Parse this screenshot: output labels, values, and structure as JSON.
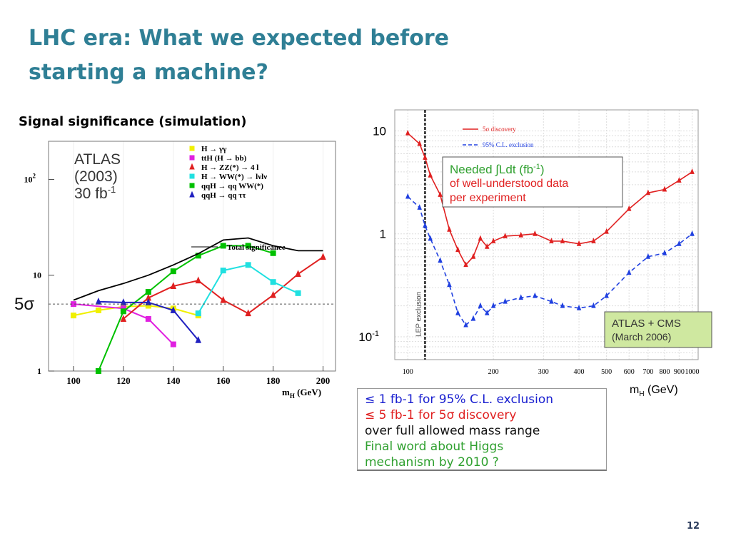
{
  "slide": {
    "title_line1": "LHC era:  What we expected before",
    "title_line2": "starting  a machine?",
    "subtitle": "Signal significance (simulation)",
    "page_number": "12"
  },
  "chart_data": [
    {
      "type": "line",
      "y_scale": "log",
      "xlabel": "m",
      "xlabel_sub": "H",
      "xlabel_unit": " (GeV)",
      "xlim": [
        90,
        205
      ],
      "ylim": [
        1,
        250
      ],
      "x_ticks": [
        "100",
        "120",
        "140",
        "160",
        "180",
        "200"
      ],
      "y_ticks": [
        {
          "value": 1,
          "label": "1",
          "sup": ""
        },
        {
          "value": 10,
          "label": "10",
          "sup": ""
        },
        {
          "value": 100,
          "label": "10",
          "sup": "2"
        }
      ],
      "threshold": {
        "value": 5,
        "label": "5σ"
      },
      "annotation": {
        "line1": "ATLAS",
        "line2": "(2003)",
        "line3": "30 fb",
        "line3_sup": "-1"
      },
      "series": [
        {
          "name": "H → γγ",
          "marker": "square",
          "color": "#f0f000",
          "x": [
            100,
            110,
            120,
            130,
            140,
            150
          ],
          "y": [
            3.8,
            4.3,
            4.7,
            4.8,
            4.5,
            3.8
          ]
        },
        {
          "name": "ttH (H → bb)",
          "marker": "square",
          "color": "#e020e0",
          "x": [
            100,
            120,
            130,
            140
          ],
          "y": [
            5.0,
            4.5,
            3.5,
            1.9
          ]
        },
        {
          "name": "H → ZZ(*) → 4 l",
          "marker": "triangle",
          "color": "#e02020",
          "x": [
            120,
            130,
            140,
            150,
            160,
            170,
            180,
            190,
            200
          ],
          "y": [
            3.5,
            5.8,
            7.7,
            8.8,
            5.5,
            4.0,
            6.2,
            10.3,
            15.5
          ]
        },
        {
          "name": "H → WW(*) → lνlν",
          "marker": "square",
          "color": "#20e0e0",
          "x": [
            150,
            160,
            170,
            180,
            190
          ],
          "y": [
            4.0,
            11.2,
            12.8,
            8.5,
            6.5
          ]
        },
        {
          "name": "qqH → qq WW(*)",
          "marker": "square",
          "color": "#00c000",
          "x": [
            110,
            120,
            130,
            140,
            150,
            160,
            170,
            180
          ],
          "y": [
            1.0,
            4.2,
            6.7,
            11.0,
            16.0,
            20.3,
            20.3,
            17.0
          ]
        },
        {
          "name": "qqH → qq ττ",
          "marker": "triangle",
          "color": "#2020c0",
          "x": [
            110,
            120,
            130,
            140,
            150
          ],
          "y": [
            5.3,
            5.2,
            5.2,
            4.3,
            2.1
          ]
        },
        {
          "name": "Total significance",
          "marker": "none",
          "color": "#000000",
          "x": [
            100,
            110,
            120,
            130,
            140,
            150,
            160,
            170,
            180,
            190,
            200
          ],
          "y": [
            5.5,
            6.9,
            8.2,
            10.0,
            12.8,
            16.8,
            23.3,
            24.5,
            20.3,
            18.0,
            18.0
          ]
        }
      ]
    },
    {
      "type": "line",
      "y_scale": "log",
      "x_scale": "log",
      "xlabel": "m",
      "xlabel_sub": "H",
      "xlabel_unit": " (GeV)",
      "xlim": [
        90,
        1050
      ],
      "ylim": [
        0.06,
        16
      ],
      "x_ticks": [
        "100",
        "200",
        "300",
        "400",
        "500",
        "600",
        "700",
        "800",
        "900",
        "1000"
      ],
      "y_ticks": [
        {
          "value": 10,
          "label": "10",
          "sup": ""
        },
        {
          "value": 1,
          "label": "1",
          "sup": ""
        },
        {
          "value": 0.1,
          "label": "10",
          "sup": "-1"
        }
      ],
      "vertical_band": {
        "x": 115,
        "label": "LEP exclusion"
      },
      "needed_box": {
        "line1": "Needed ∫Ldt (fb",
        "line1_sup": "-1",
        "line1_end": ")",
        "line2": "of well-understood data",
        "line3": "per experiment"
      },
      "experiment_box": {
        "line1": "ATLAS + CMS",
        "line2": "(March 2006)"
      },
      "series": [
        {
          "name": "5σ discovery",
          "marker": "triangle",
          "style": "solid",
          "color": "#e02020",
          "x": [
            100,
            110,
            115,
            120,
            130,
            140,
            150,
            160,
            170,
            180,
            190,
            200,
            220,
            250,
            280,
            320,
            350,
            400,
            450,
            500,
            600,
            700,
            800,
            900,
            1000
          ],
          "y": [
            9.5,
            7.5,
            5.5,
            3.7,
            2.4,
            1.1,
            0.7,
            0.5,
            0.6,
            0.9,
            0.75,
            0.85,
            0.95,
            0.97,
            1.0,
            0.85,
            0.85,
            0.8,
            0.85,
            1.05,
            1.75,
            2.5,
            2.7,
            3.3,
            4.0
          ]
        },
        {
          "name": "95% C.L. exclusion",
          "marker": "triangle",
          "style": "dashed",
          "color": "#2040e0",
          "x": [
            100,
            110,
            115,
            120,
            130,
            140,
            150,
            160,
            170,
            180,
            190,
            200,
            220,
            250,
            280,
            320,
            350,
            400,
            450,
            500,
            600,
            700,
            800,
            900,
            1000
          ],
          "y": [
            2.3,
            1.8,
            1.2,
            0.9,
            0.55,
            0.32,
            0.17,
            0.13,
            0.15,
            0.2,
            0.17,
            0.2,
            0.22,
            0.24,
            0.25,
            0.22,
            0.2,
            0.19,
            0.2,
            0.25,
            0.42,
            0.6,
            0.65,
            0.8,
            1.0
          ]
        }
      ]
    }
  ],
  "summary": {
    "line1": "≤ 1 fb-1 for 95% C.L. exclusion",
    "line2": "≤ 5 fb-1 for 5σ discovery",
    "line3": "over full allowed mass range",
    "line4": "Final word about Higgs",
    "line5": "mechanism by 2010 ?"
  },
  "colors": {
    "title": "#2f7f95",
    "summary_blue": "#1a20d0",
    "summary_red": "#e02020",
    "summary_green": "#2fa02f"
  }
}
